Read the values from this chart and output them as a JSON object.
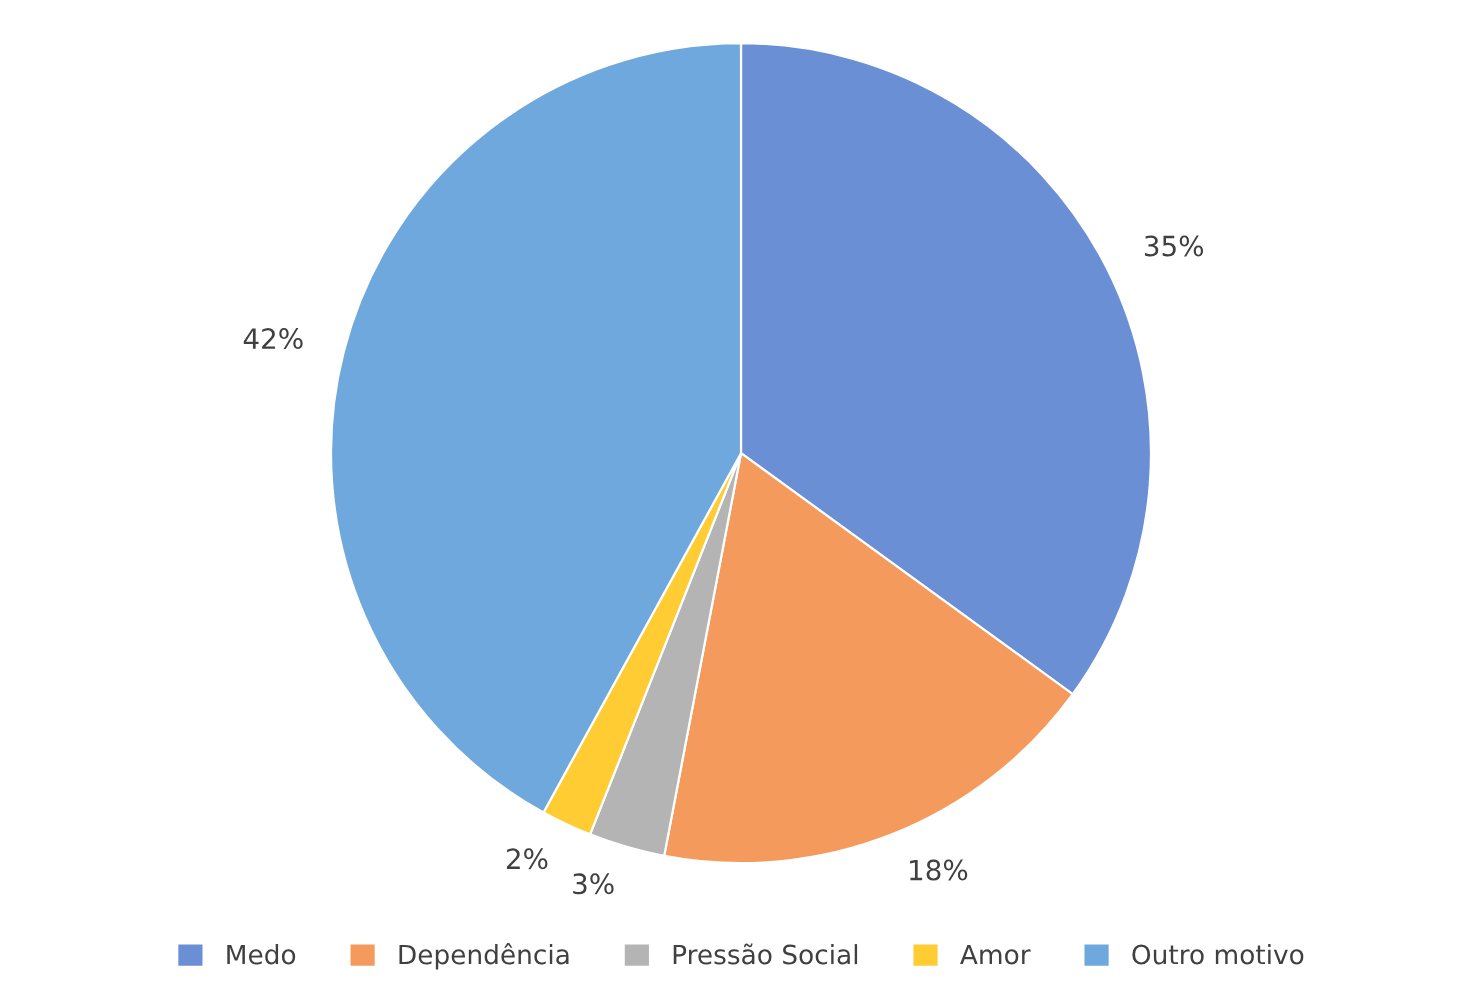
{
  "chart_data": {
    "type": "pie",
    "categories": [
      "Medo",
      "Dependência",
      "Pressão Social",
      "Amor",
      "Outro motivo"
    ],
    "values": [
      35,
      18,
      3,
      2,
      42
    ],
    "value_labels": [
      "35%",
      "18%",
      "3%",
      "2%",
      "42%"
    ],
    "colors": [
      "#6b8fd4",
      "#f39a5c",
      "#b4b4b4",
      "#ffcc33",
      "#6ea8dc"
    ],
    "legend": "bottom"
  }
}
